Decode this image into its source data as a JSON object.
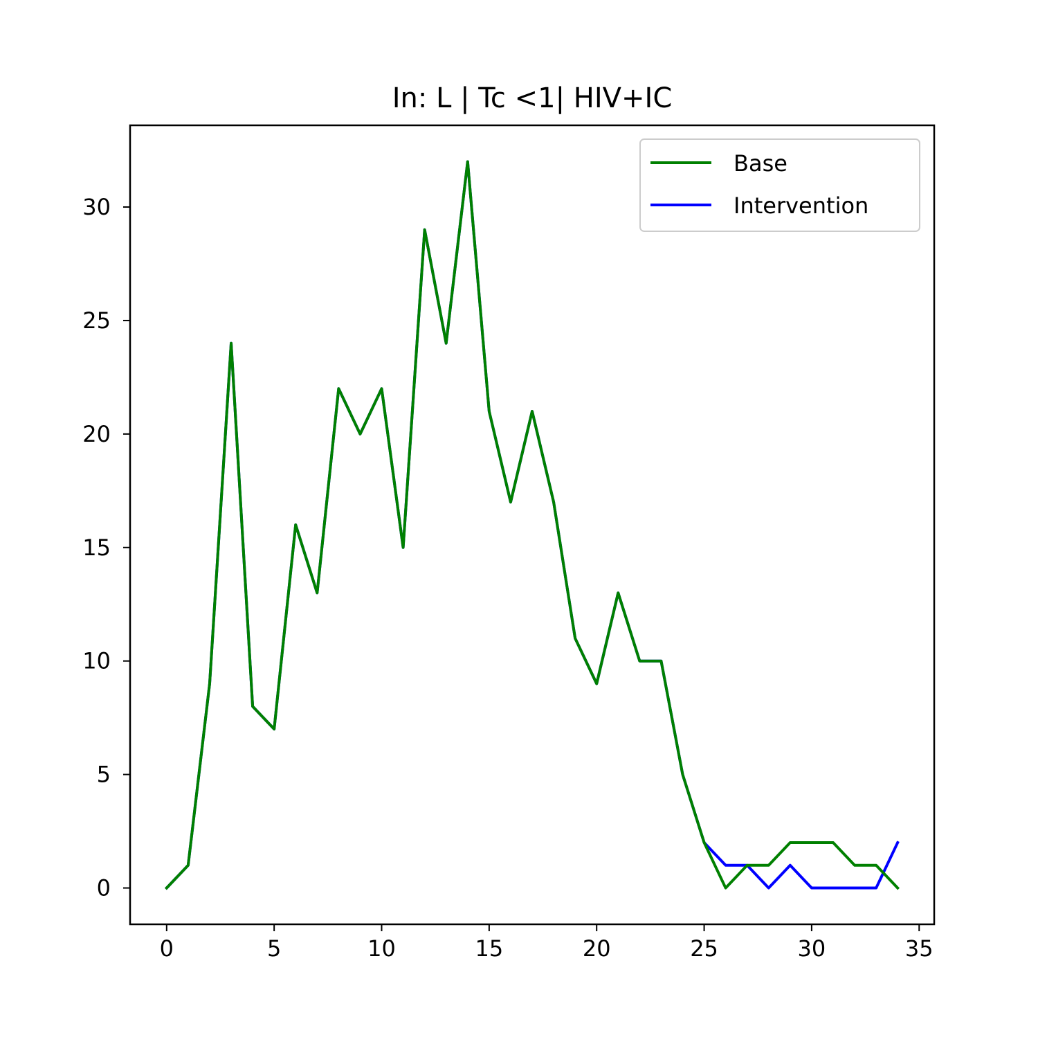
{
  "chart_data": {
    "type": "line",
    "title": "In: L | Tc <1| HIV+IC",
    "xlabel": "",
    "ylabel": "",
    "x": [
      0,
      1,
      2,
      3,
      4,
      5,
      6,
      7,
      8,
      9,
      10,
      11,
      12,
      13,
      14,
      15,
      16,
      17,
      18,
      19,
      20,
      21,
      22,
      23,
      24,
      25,
      26,
      27,
      28,
      29,
      30,
      31,
      32,
      33,
      34
    ],
    "xlim": [
      -1.7,
      35.7
    ],
    "ylim": [
      -1.6,
      33.6
    ],
    "xticks": [
      0,
      5,
      10,
      15,
      20,
      25,
      30,
      35
    ],
    "yticks": [
      0,
      5,
      10,
      15,
      20,
      25,
      30
    ],
    "grid": false,
    "legend_position": "upper right",
    "series": [
      {
        "name": "Intervention",
        "color": "#0000ff",
        "values": [
          0,
          1,
          9,
          24,
          8,
          7,
          16,
          13,
          22,
          20,
          22,
          15,
          29,
          24,
          32,
          21,
          17,
          21,
          17,
          11,
          9,
          13,
          10,
          10,
          5,
          2,
          1,
          1,
          0,
          1,
          0,
          0,
          0,
          0,
          2
        ]
      },
      {
        "name": "Base",
        "color": "#008000",
        "values": [
          0,
          1,
          9,
          24,
          8,
          7,
          16,
          13,
          22,
          20,
          22,
          15,
          29,
          24,
          32,
          21,
          17,
          21,
          17,
          11,
          9,
          13,
          10,
          10,
          5,
          2,
          0,
          1,
          1,
          2,
          2,
          2,
          1,
          1,
          0
        ]
      }
    ],
    "legend_order": [
      "Base",
      "Intervention"
    ]
  }
}
